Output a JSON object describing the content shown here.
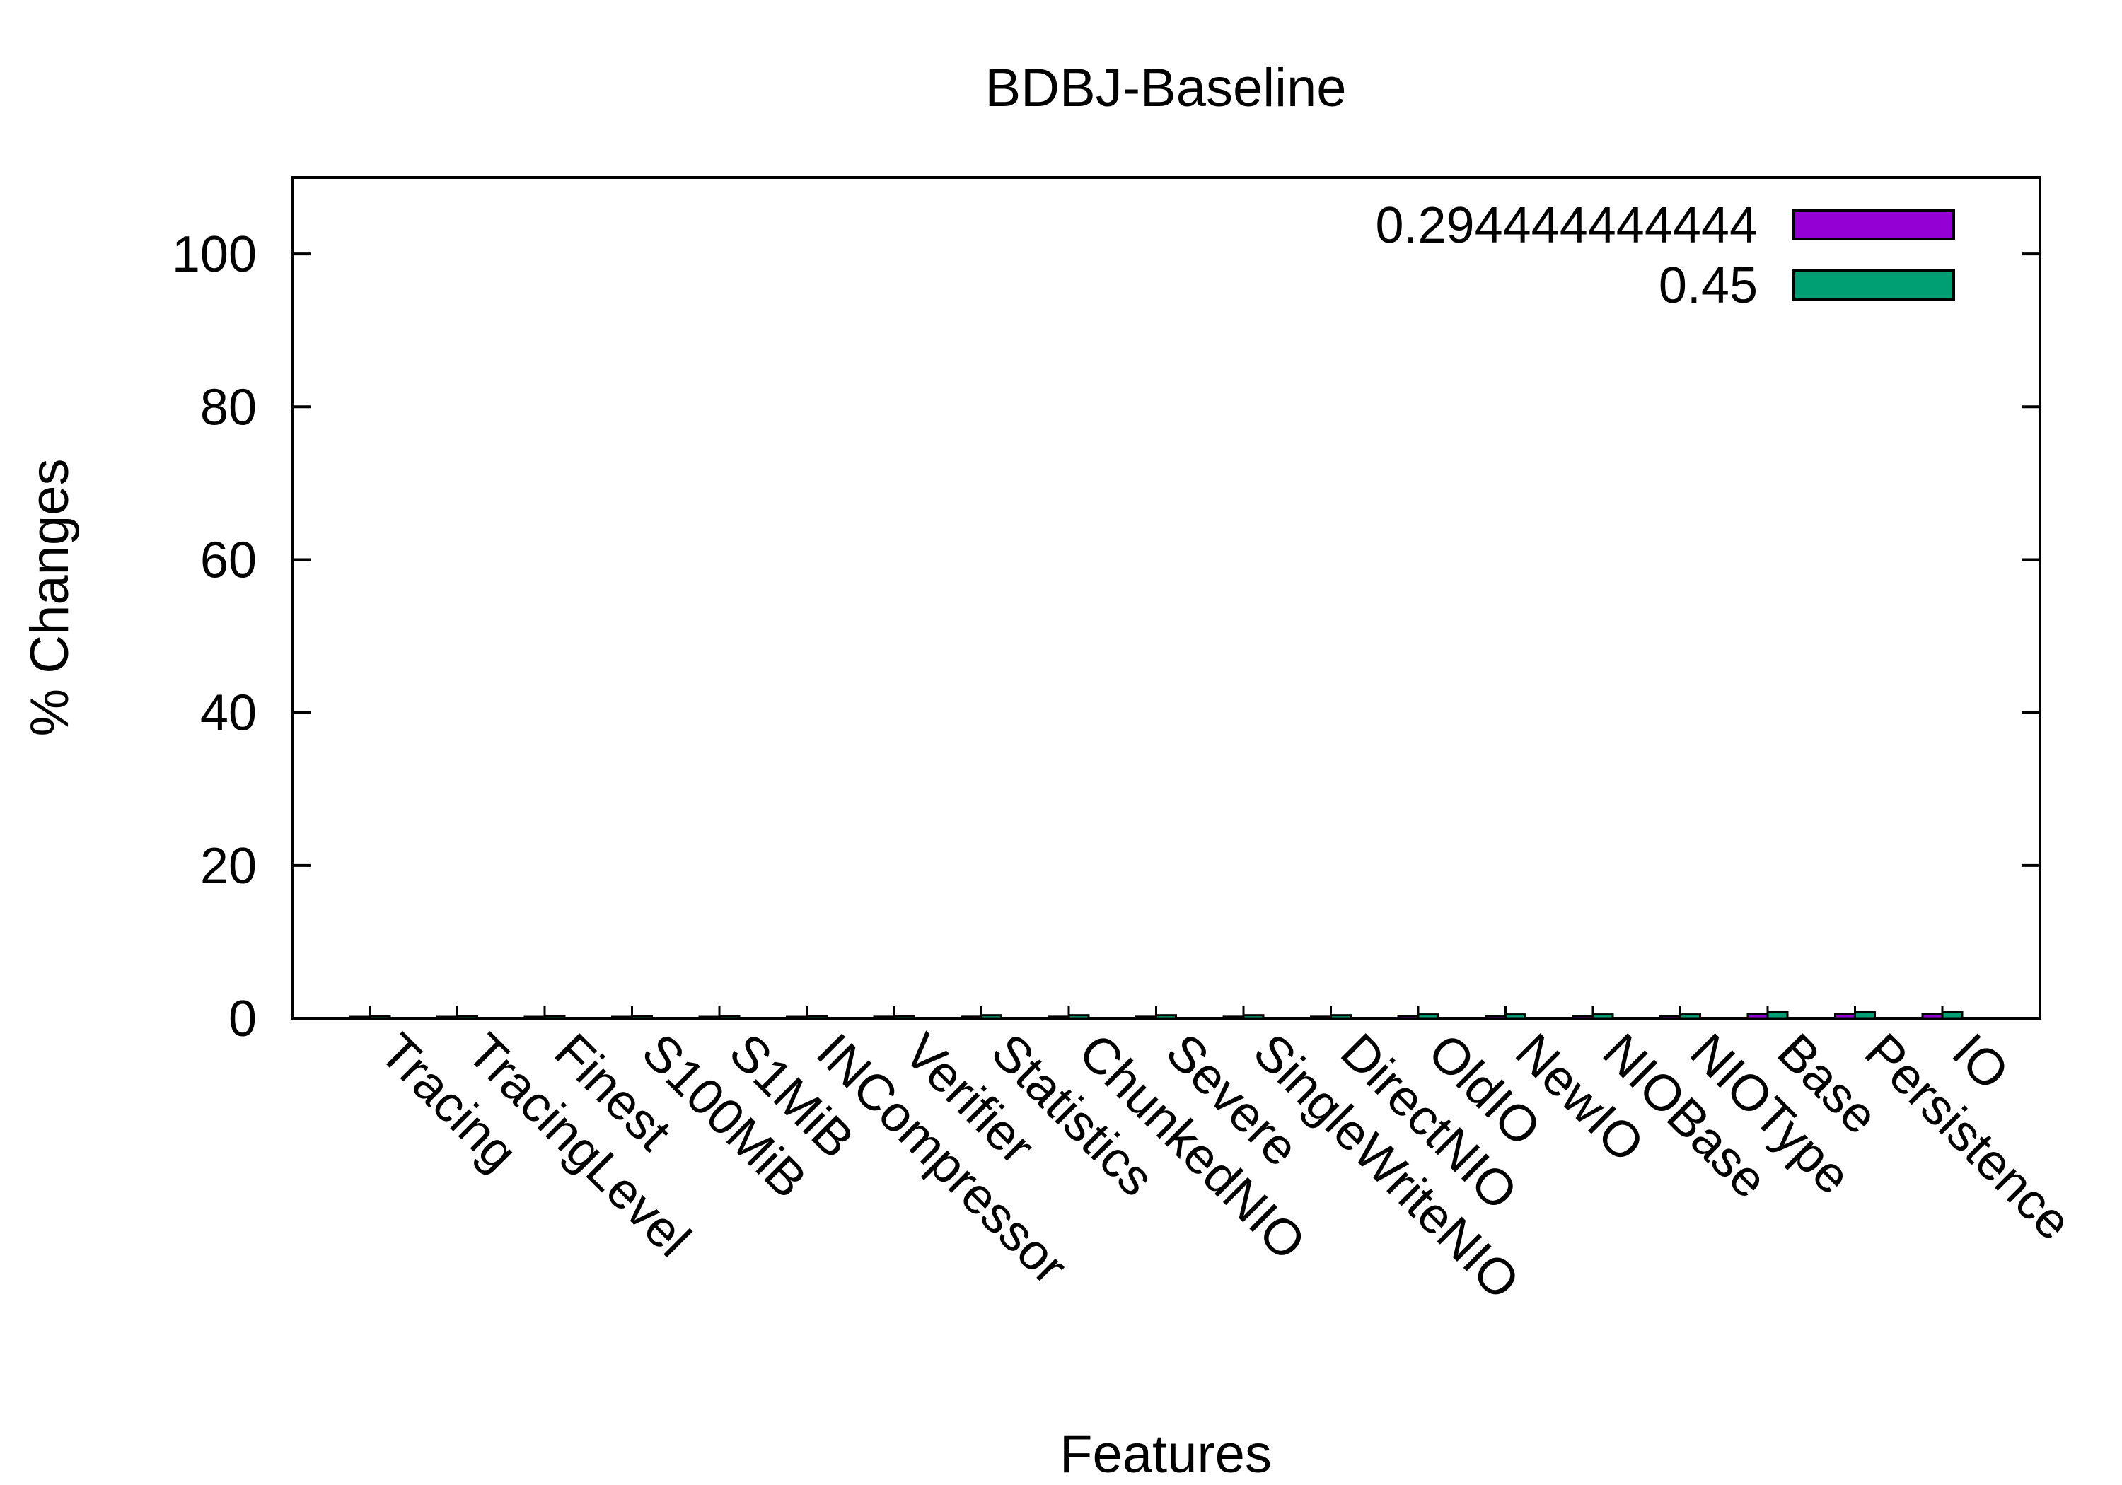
{
  "chart_data": {
    "type": "bar",
    "title": "BDBJ-Baseline",
    "xlabel": "Features",
    "ylabel": "% Changes",
    "ylim": [
      0,
      110
    ],
    "yticks": [
      0,
      20,
      40,
      60,
      80,
      100
    ],
    "grid": false,
    "legend_position": "top-right",
    "categories": [
      "Tracing",
      "TracingLevel",
      "Finest",
      "S100MiB",
      "S1MiB",
      "INCompressor",
      "Verifier",
      "Statistics",
      "ChunkedNIO",
      "Severe",
      "SingleWriteNIO",
      "DirectNIO",
      "OldIO",
      "NewIO",
      "NIOBase",
      "NIOType",
      "Base",
      "Persistence",
      "IO"
    ],
    "series": [
      {
        "name": "0.294444444444",
        "color": "#9400d3",
        "values": [
          0.1,
          0.1,
          0.1,
          0.1,
          0.1,
          0.1,
          0.2,
          0.2,
          0.2,
          0.2,
          0.2,
          0.2,
          0.3,
          0.3,
          0.3,
          0.3,
          0.6,
          0.6,
          0.6
        ]
      },
      {
        "name": "0.45",
        "color": "#009e73",
        "values": [
          0.3,
          0.3,
          0.3,
          0.3,
          0.3,
          0.3,
          0.3,
          0.4,
          0.4,
          0.4,
          0.4,
          0.4,
          0.5,
          0.5,
          0.5,
          0.5,
          0.8,
          0.8,
          0.8
        ]
      }
    ]
  }
}
